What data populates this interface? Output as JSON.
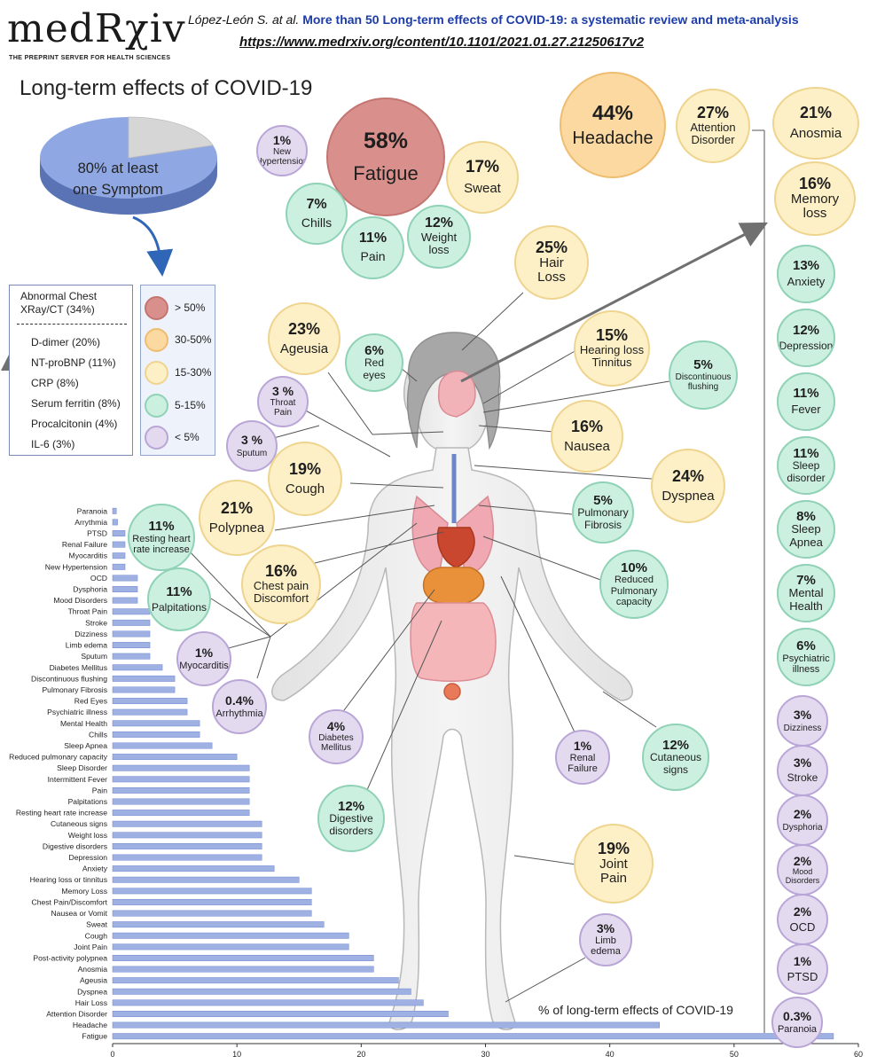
{
  "header": {
    "logo": "medRχiv",
    "logo_sub": "THE PREPRINT SERVER FOR HEALTH SCIENCES",
    "authors": "López-León S. at al.",
    "title": "More than 50 Long-term effects of COVID-19: a systematic review and meta-analysis",
    "url": "https://www.medrxiv.org/content/10.1101/2021.01.27.21250617v2"
  },
  "main_title": "Long-term effects of COVID-19",
  "pie": {
    "label_line1": "80% at least",
    "label_line2": "one Symptom",
    "value": 80
  },
  "lab_box": {
    "head": "Abnormal Chest XRay/CT (34%)",
    "items": [
      "D-dimer (20%)",
      "NT-proBNP (11%)",
      "CRP (8%)",
      "Serum ferritin (8%)",
      "Procalcitonin (4%)",
      "IL-6 (3%)"
    ]
  },
  "legend": [
    {
      "label": "> 50%",
      "tier": "r"
    },
    {
      "label": "30-50%",
      "tier": "o"
    },
    {
      "label": "15-30%",
      "tier": "y"
    },
    {
      "label": "5-15%",
      "tier": "g"
    },
    {
      "label": "< 5%",
      "tier": "p"
    }
  ],
  "colors": {
    "r": "#d9908c",
    "o": "#fbd9a0",
    "y": "#fdf0c6",
    "g": "#ccf0e0",
    "p": "#e4daf0",
    "bar": "#9fb1e3",
    "bar_stroke": "#6f86cf",
    "accent": "#1c3ca8"
  },
  "bubbles": {
    "new_hypertension": {
      "pct": "1%",
      "label": "New Hypertension",
      "tier": "p"
    },
    "fatigue": {
      "pct": "58%",
      "label": "Fatigue",
      "tier": "r"
    },
    "sweat": {
      "pct": "17%",
      "label": "Sweat",
      "tier": "y"
    },
    "chills": {
      "pct": "7%",
      "label": "Chills",
      "tier": "g"
    },
    "pain": {
      "pct": "11%",
      "label": "Pain",
      "tier": "g"
    },
    "weight_loss": {
      "pct": "12%",
      "label": "Weight loss",
      "tier": "g"
    },
    "headache": {
      "pct": "44%",
      "label": "Headache",
      "tier": "o"
    },
    "attention_disorder": {
      "pct": "27%",
      "label": "Attention Disorder",
      "tier": "y"
    },
    "anosmia": {
      "pct": "21%",
      "label": "Anosmia",
      "tier": "y"
    },
    "memory_loss": {
      "pct": "16%",
      "label": "Memory loss",
      "tier": "y"
    },
    "anxiety": {
      "pct": "13%",
      "label": "Anxiety",
      "tier": "g"
    },
    "depression": {
      "pct": "12%",
      "label": "Depression",
      "tier": "g"
    },
    "fever": {
      "pct": "11%",
      "label": "Fever",
      "tier": "g"
    },
    "sleep_disorder": {
      "pct": "11%",
      "label": "Sleep disorder",
      "tier": "g"
    },
    "sleep_apnea": {
      "pct": "8%",
      "label": "Sleep Apnea",
      "tier": "g"
    },
    "mental_health": {
      "pct": "7%",
      "label": "Mental Health",
      "tier": "g"
    },
    "psychiatric_illness": {
      "pct": "6%",
      "label": "Psychiatric illness",
      "tier": "g"
    },
    "dizziness": {
      "pct": "3%",
      "label": "Dizziness",
      "tier": "p"
    },
    "stroke": {
      "pct": "3%",
      "label": "Stroke",
      "tier": "p"
    },
    "dysphoria": {
      "pct": "2%",
      "label": "Dysphoria",
      "tier": "p"
    },
    "mood_disorders": {
      "pct": "2%",
      "label": "Mood Disorders",
      "tier": "p"
    },
    "ocd": {
      "pct": "2%",
      "label": "OCD",
      "tier": "p"
    },
    "ptsd": {
      "pct": "1%",
      "label": "PTSD",
      "tier": "p"
    },
    "paranoia": {
      "pct": "0.3%",
      "label": "Paranoia",
      "tier": "p"
    },
    "hair_loss": {
      "pct": "25%",
      "label": "Hair Loss",
      "tier": "y"
    },
    "ageusia": {
      "pct": "23%",
      "label": "Ageusia",
      "tier": "y"
    },
    "red_eyes": {
      "pct": "6%",
      "label": "Red eyes",
      "tier": "g"
    },
    "hearing_loss": {
      "pct": "15%",
      "label": "Hearing loss Tinnitus",
      "tier": "y"
    },
    "discontinuous_flushing": {
      "pct": "5%",
      "label": "Discontinuous flushing",
      "tier": "g"
    },
    "throat_pain": {
      "pct": "3 %",
      "label": "Throat Pain",
      "tier": "p"
    },
    "sputum": {
      "pct": "3 %",
      "label": "Sputum",
      "tier": "p"
    },
    "nausea": {
      "pct": "16%",
      "label": "Nausea",
      "tier": "y"
    },
    "cough": {
      "pct": "19%",
      "label": "Cough",
      "tier": "y"
    },
    "dyspnea": {
      "pct": "24%",
      "label": "Dyspnea",
      "tier": "y"
    },
    "polypnea": {
      "pct": "21%",
      "label": "Polypnea",
      "tier": "y"
    },
    "pulmonary_fibrosis": {
      "pct": "5%",
      "label": "Pulmonary Fibrosis",
      "tier": "g"
    },
    "resting_heart_rate": {
      "pct": "11%",
      "label": "Resting heart rate increase",
      "tier": "g"
    },
    "chest_pain": {
      "pct": "16%",
      "label": "Chest pain Discomfort",
      "tier": "y"
    },
    "reduced_pulmonary": {
      "pct": "10%",
      "label": "Reduced Pulmonary capacity",
      "tier": "g"
    },
    "palpitations": {
      "pct": "11%",
      "label": "Palpitations",
      "tier": "g"
    },
    "myocarditis": {
      "pct": "1%",
      "label": "Myocarditis",
      "tier": "p"
    },
    "arrhythmia": {
      "pct": "0.4%",
      "label": "Arrhythmia",
      "tier": "p"
    },
    "diabetes": {
      "pct": "4%",
      "label": "Diabetes Mellitus",
      "tier": "p"
    },
    "renal_failure": {
      "pct": "1%",
      "label": "Renal Failure",
      "tier": "p"
    },
    "cutaneous_signs": {
      "pct": "12%",
      "label": "Cutaneous signs",
      "tier": "g"
    },
    "digestive_disorders": {
      "pct": "12%",
      "label": "Digestive disorders",
      "tier": "g"
    },
    "joint_pain": {
      "pct": "19%",
      "label": "Joint Pain",
      "tier": "y"
    },
    "limb_edema": {
      "pct": "3%",
      "label": "Limb edema",
      "tier": "p"
    }
  },
  "chart_data": {
    "type": "bar",
    "orientation": "horizontal",
    "title": "% of long-term effects of COVID-19",
    "xlim": [
      0,
      60
    ],
    "xticks": [
      0,
      10,
      20,
      30,
      40,
      50,
      60
    ],
    "grid": false,
    "categories": [
      "Paranoia",
      "Arrythmia",
      "PTSD",
      "Renal Failure",
      "Myocarditis",
      "New Hypertension",
      "OCD",
      "Dysphoria",
      "Mood Disorders",
      "Throat Pain",
      "Stroke",
      "Dizziness",
      "Limb edema",
      "Sputum",
      "Diabetes Mellitus",
      "Discontinuous flushing",
      "Pulmonary Fibrosis",
      "Red Eyes",
      "Psychiatric illness",
      "Mental Health",
      "Chills",
      "Sleep Apnea",
      "Reduced pulmonary capacity",
      "Sleep Disorder",
      "Intermittent Fever",
      "Pain",
      "Palpitations",
      "Resting heart rate increase",
      "Cutaneous signs",
      "Weight loss",
      "Digestive disorders",
      "Depression",
      "Anxiety",
      "Hearing loss or tinnitus",
      "Memory Loss",
      "Chest Pain/Discomfort",
      "Nausea or Vomit",
      "Sweat",
      "Cough",
      "Joint Pain",
      "Post-activity polypnea",
      "Anosmia",
      "Ageusia",
      "Dyspnea",
      "Hair Loss",
      "Attention Disorder",
      "Headache",
      "Fatigue"
    ],
    "values": [
      0.3,
      0.4,
      1,
      1,
      1,
      1,
      2,
      2,
      2,
      3,
      3,
      3,
      3,
      3,
      4,
      5,
      5,
      6,
      6,
      7,
      7,
      8,
      10,
      11,
      11,
      11,
      11,
      11,
      12,
      12,
      12,
      12,
      13,
      15,
      16,
      16,
      16,
      17,
      19,
      19,
      21,
      21,
      23,
      24,
      25,
      27,
      44,
      58
    ]
  }
}
